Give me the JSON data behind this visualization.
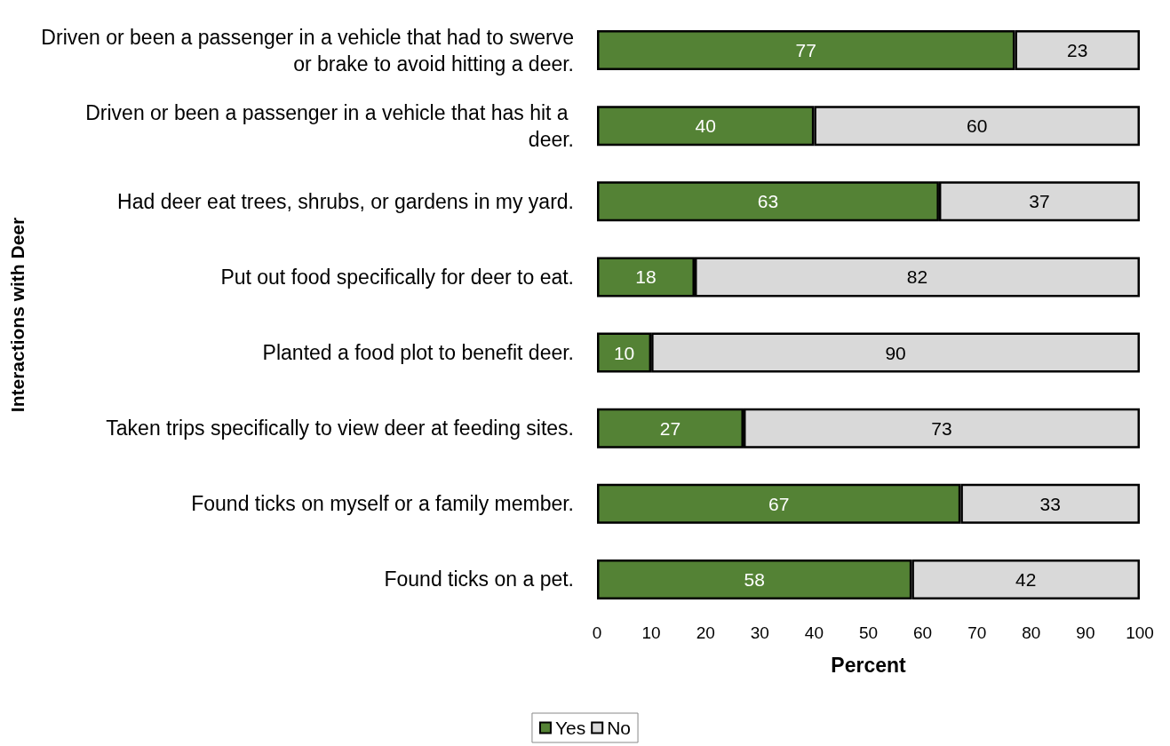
{
  "chart_data": {
    "type": "bar",
    "orientation": "horizontal",
    "stacked": true,
    "xlabel": "Percent",
    "ylabel": "Interactions with Deer",
    "categories": [
      "Driven or been a passenger in a vehicle that had to swerve or brake to avoid hitting a deer.",
      "Driven or been a passenger in a vehicle that has hit a deer.",
      "Had deer eat trees, shrubs, or gardens in my yard.",
      "Put out food specifically for deer to eat.",
      "Planted a food plot to benefit deer.",
      "Taken trips specifically to view deer at feeding sites.",
      "Found ticks on myself or a family member.",
      "Found ticks on a pet."
    ],
    "series": [
      {
        "name": "Yes",
        "color": "#548235",
        "values": [
          77,
          40,
          63,
          18,
          10,
          27,
          67,
          58
        ]
      },
      {
        "name": "No",
        "color": "#d9d9d9",
        "values": [
          23,
          60,
          37,
          82,
          90,
          73,
          33,
          42
        ]
      }
    ],
    "xlim": [
      0,
      100
    ],
    "xticks": [
      0,
      10,
      20,
      30,
      40,
      50,
      60,
      70,
      80,
      90,
      100
    ],
    "data_labels": true,
    "legend": "bottom"
  }
}
